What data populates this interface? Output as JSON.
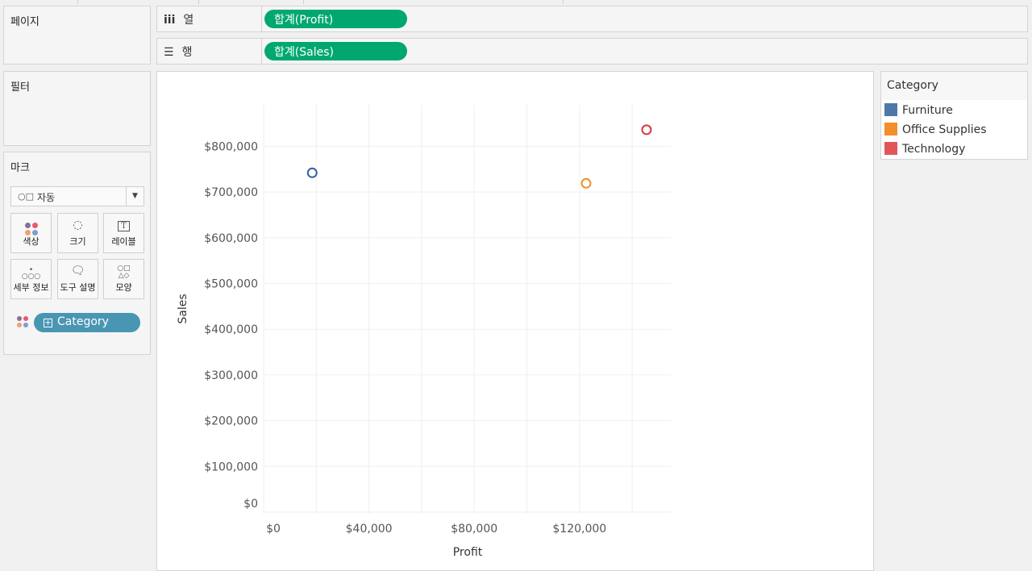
{
  "panels": {
    "pages": "페이지",
    "filters": "필터",
    "marks": "마크"
  },
  "marks": {
    "type_icon": "shapes-icon",
    "type": "자동",
    "cards": [
      {
        "label": "색상",
        "icon": "color-icon"
      },
      {
        "label": "크기",
        "icon": "size-icon"
      },
      {
        "label": "레이블",
        "icon": "label-icon"
      },
      {
        "label": "세부 정보",
        "icon": "detail-icon"
      },
      {
        "label": "도구 설명",
        "icon": "tooltip-icon"
      },
      {
        "label": "모양",
        "icon": "shape-icon"
      }
    ],
    "color_pill": "Category"
  },
  "shelves": {
    "columns": {
      "label": "열",
      "pill": "합계(Profit)"
    },
    "rows": {
      "label": "행",
      "pill": "합계(Sales)"
    }
  },
  "legend": {
    "title": "Category",
    "items": [
      {
        "label": "Furniture",
        "color": "#4e79a7"
      },
      {
        "label": "Office Supplies",
        "color": "#f28e2b"
      },
      {
        "label": "Technology",
        "color": "#e15759"
      }
    ]
  },
  "chart_data": {
    "type": "scatter",
    "xlabel": "Profit",
    "ylabel": "Sales",
    "xlim": [
      0,
      155000
    ],
    "ylim": [
      0,
      880000
    ],
    "x_ticks": [
      0,
      40000,
      80000,
      120000
    ],
    "x_tick_labels": [
      "$0",
      "$40,000",
      "$80,000",
      "$120,000"
    ],
    "y_ticks": [
      0,
      100000,
      200000,
      300000,
      400000,
      500000,
      600000,
      700000,
      800000
    ],
    "y_tick_labels": [
      "$0",
      "$100,000",
      "$200,000",
      "$300,000",
      "$400,000",
      "$500,000",
      "$600,000",
      "$700,000",
      "$800,000"
    ],
    "grid": true,
    "marker": "open-circle",
    "series": [
      {
        "name": "Furniture",
        "color": "#2f6198",
        "x": 18451,
        "y": 741999
      },
      {
        "name": "Office Supplies",
        "color": "#f28e2b",
        "x": 122491,
        "y": 719047
      },
      {
        "name": "Technology",
        "color": "#d63a3f",
        "x": 145455,
        "y": 836154
      }
    ]
  }
}
